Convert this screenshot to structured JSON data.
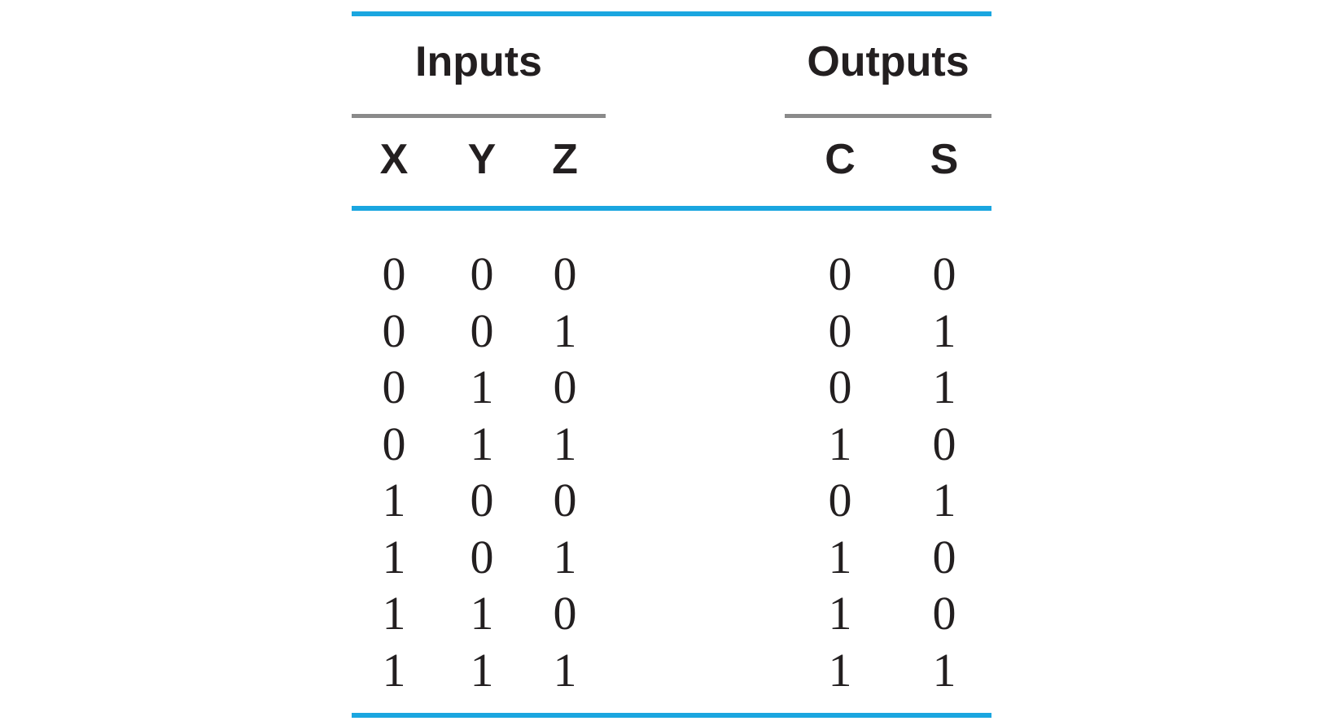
{
  "table": {
    "groups": {
      "inputs": "Inputs",
      "outputs": "Outputs"
    },
    "columns": [
      "X",
      "Y",
      "Z",
      "C",
      "S"
    ],
    "rows": [
      [
        "0",
        "0",
        "0",
        "0",
        "0"
      ],
      [
        "0",
        "0",
        "1",
        "0",
        "1"
      ],
      [
        "0",
        "1",
        "0",
        "0",
        "1"
      ],
      [
        "0",
        "1",
        "1",
        "1",
        "0"
      ],
      [
        "1",
        "0",
        "0",
        "0",
        "1"
      ],
      [
        "1",
        "0",
        "1",
        "1",
        "0"
      ],
      [
        "1",
        "1",
        "0",
        "1",
        "0"
      ],
      [
        "1",
        "1",
        "1",
        "1",
        "1"
      ]
    ]
  },
  "colors": {
    "accent_rule": "#1aa6e0",
    "group_rule": "#8a8a8a",
    "text": "#231f20"
  }
}
